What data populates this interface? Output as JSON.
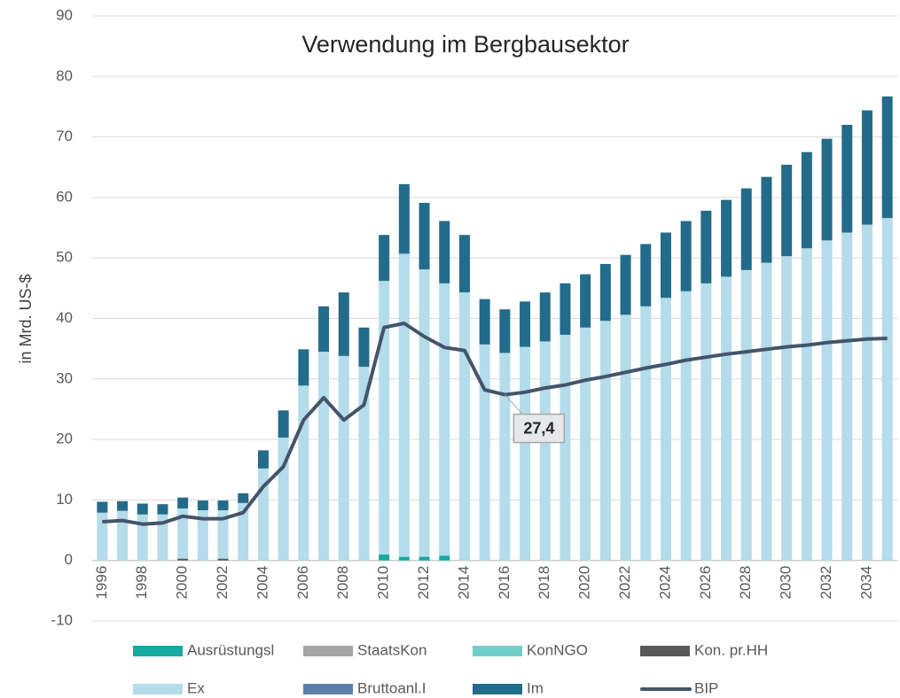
{
  "chart_data": {
    "type": "bar",
    "title": "Verwendung im Bergbausektor",
    "y_label": "in Mrd. US-$",
    "categories": [
      "1996",
      null,
      "1998",
      null,
      "2000",
      null,
      "2002",
      null,
      "2004",
      null,
      "2006",
      null,
      "2008",
      null,
      "2010",
      null,
      "2012",
      null,
      "2014",
      null,
      "2016",
      null,
      "2018",
      null,
      "2020",
      null,
      "2022",
      null,
      "2024",
      null,
      "2026",
      null,
      "2028",
      null,
      "2030",
      null,
      "2032",
      null,
      "2034",
      null
    ],
    "ylim": [
      -10,
      90
    ],
    "yticks": [
      -10,
      0,
      10,
      20,
      30,
      40,
      50,
      60,
      70,
      80,
      90
    ],
    "grid": true,
    "stacked": true,
    "legend": "bottom",
    "series": [
      {
        "name": "Ausrüstungsl",
        "color": "#17a8a0",
        "values": [
          0,
          0,
          0,
          0,
          0,
          0,
          0,
          0,
          0,
          0,
          0,
          0,
          0,
          0,
          1.0,
          0.6,
          0.6,
          0.8,
          0,
          0,
          0,
          0,
          0,
          0,
          0,
          0,
          0,
          0,
          0,
          0,
          0,
          0,
          0,
          0,
          0,
          0,
          0,
          0,
          0,
          0
        ]
      },
      {
        "name": "StaatsKon",
        "color": "#a5a5a5",
        "values": [
          0,
          0,
          0,
          0,
          0,
          0,
          0,
          0,
          0,
          0,
          0,
          0,
          0,
          0,
          0,
          0,
          0,
          0,
          0,
          0,
          0,
          0,
          0,
          0,
          0,
          0,
          0,
          0,
          0,
          0,
          0,
          0,
          0,
          0,
          0,
          0,
          0,
          0,
          0,
          0
        ]
      },
      {
        "name": "KonNGO",
        "color": "#6fcfc8",
        "values": [
          0,
          0,
          0,
          0,
          0,
          0,
          0,
          0,
          0,
          0,
          0,
          0,
          0,
          0,
          0,
          0,
          0,
          0,
          0,
          0,
          0,
          0,
          0,
          0,
          0,
          0,
          0,
          0,
          0,
          0,
          0,
          0,
          0,
          0,
          0,
          0,
          0,
          0,
          0,
          0
        ]
      },
      {
        "name": "Kon. pr.HH",
        "color": "#595959",
        "values": [
          0,
          0,
          0,
          0,
          0.3,
          0,
          0.3,
          0,
          0,
          0,
          0,
          0,
          0,
          0,
          0,
          0,
          0,
          0,
          0,
          0,
          0,
          0,
          0,
          0,
          0,
          0,
          0,
          0,
          0,
          0,
          0,
          0,
          0,
          0,
          0,
          0,
          0,
          0,
          0,
          0
        ]
      },
      {
        "name": "Ex",
        "color": "#b4dcea",
        "values": [
          7.9,
          8.2,
          7.6,
          7.6,
          8.3,
          8.3,
          8.0,
          9.5,
          15.2,
          20.3,
          28.9,
          34.5,
          33.8,
          32.0,
          45.2,
          50.1,
          47.5,
          45.0,
          44.3,
          35.7,
          34.3,
          35.3,
          36.2,
          37.3,
          38.5,
          39.6,
          40.6,
          42.0,
          43.4,
          44.5,
          45.8,
          46.9,
          48.0,
          49.2,
          50.3,
          51.6,
          52.9,
          54.2,
          55.5,
          56.6
        ]
      },
      {
        "name": "Bruttoanl.I",
        "color": "#5b7fa6",
        "values": [
          0,
          0,
          0,
          0,
          0,
          0,
          0,
          0,
          0,
          0,
          0,
          0,
          0,
          0,
          0,
          0,
          0,
          0,
          0,
          0,
          0,
          0,
          0,
          0,
          0,
          0,
          0,
          0,
          0,
          0,
          0,
          0,
          0,
          0,
          0,
          0,
          0,
          0,
          0,
          0
        ]
      },
      {
        "name": "Im",
        "color": "#236b8a",
        "values": [
          1.8,
          1.6,
          1.8,
          1.7,
          1.8,
          1.6,
          1.6,
          1.6,
          3.0,
          4.5,
          6.0,
          7.5,
          10.5,
          6.5,
          7.6,
          11.5,
          11.0,
          10.3,
          9.5,
          7.5,
          7.2,
          7.5,
          8.1,
          8.5,
          8.8,
          9.4,
          9.9,
          10.3,
          10.8,
          11.6,
          12.0,
          12.7,
          13.5,
          14.2,
          15.1,
          15.9,
          16.8,
          17.8,
          18.9,
          20.1
        ]
      },
      {
        "name": "BIP",
        "type": "line",
        "color": "#44546a",
        "values": [
          6.4,
          6.6,
          6.0,
          6.2,
          7.3,
          6.9,
          6.9,
          7.9,
          12.2,
          15.5,
          23.2,
          26.9,
          23.2,
          25.7,
          38.5,
          39.2,
          37.0,
          35.2,
          34.7,
          28.2,
          27.4,
          27.8,
          28.5,
          29.0,
          29.8,
          30.4,
          31.1,
          31.8,
          32.4,
          33.1,
          33.6,
          34.1,
          34.5,
          34.9,
          35.3,
          35.6,
          36.0,
          36.3,
          36.6,
          36.7
        ],
        "value_labels": [
          null,
          null,
          null,
          null,
          null,
          null,
          null,
          null,
          null,
          null,
          null,
          null,
          null,
          null,
          null,
          null,
          null,
          null,
          null,
          null,
          "27,4",
          null,
          null,
          null,
          null,
          null,
          null,
          null,
          null,
          null,
          null,
          null,
          null,
          null,
          null,
          null,
          null,
          null,
          null,
          null
        ]
      }
    ]
  }
}
